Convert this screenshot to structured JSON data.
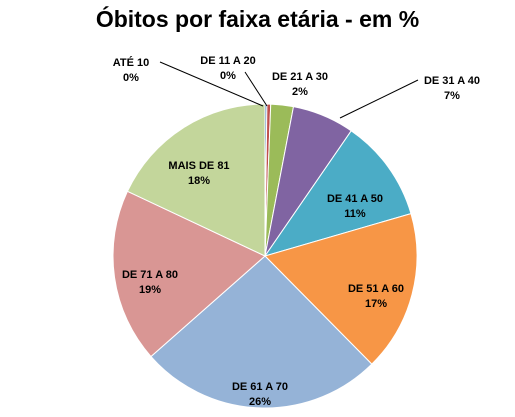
{
  "chart_data": {
    "type": "pie",
    "title": "Óbitos por faixa etária - em %",
    "categories": [
      "ATÉ 10",
      "DE 11 A 20",
      "DE 21 A 30",
      "DE 31 A 40",
      "DE 41 A 50",
      "DE 51 A 60",
      "DE 61 A 70",
      "DE 71 A 80",
      "MAIS DE 81"
    ],
    "values": [
      0.2,
      0.4,
      2.4,
      6.6,
      10.9,
      17.1,
      25.9,
      18.5,
      18.0
    ],
    "value_labels": [
      "0%",
      "0%",
      "2%",
      "7%",
      "11%",
      "17%",
      "26%",
      "19%",
      "18%"
    ],
    "colors": [
      "#4F81BD",
      "#C0504D",
      "#9BBB59",
      "#8064A2",
      "#4BACC6",
      "#F79646",
      "#95B3D7",
      "#D99694",
      "#C3D69B"
    ],
    "start_angle_deg": 0,
    "direction": "clockwise",
    "legend": "none"
  }
}
